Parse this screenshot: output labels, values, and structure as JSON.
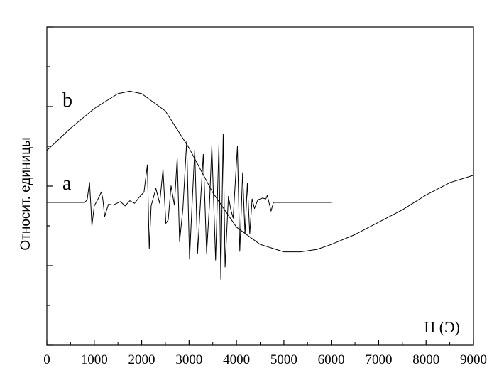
{
  "chart_data": {
    "type": "line",
    "xlabel": "H (Э)",
    "ylabel": "Относит. единицы",
    "xlim": [
      0,
      9000
    ],
    "x_ticks": [
      "0",
      "1000",
      "2000",
      "3000",
      "4000",
      "5000",
      "6000",
      "7000",
      "8000",
      "9000"
    ],
    "y_tick_count": 9,
    "grid": false,
    "series": [
      {
        "name": "a",
        "x": [
          0,
          800,
          850,
          900,
          930,
          950,
          1000,
          1080,
          1150,
          1180,
          1220,
          1300,
          1400,
          1550,
          1650,
          1750,
          1850,
          1950,
          2050,
          2120,
          2160,
          2200,
          2300,
          2380,
          2450,
          2510,
          2560,
          2620,
          2690,
          2750,
          2800,
          2870,
          2950,
          3010,
          3060,
          3120,
          3180,
          3230,
          3300,
          3370,
          3430,
          3480,
          3560,
          3630,
          3670,
          3720,
          3760,
          3830,
          3880,
          3930,
          4020,
          4070,
          4130,
          4180,
          4230,
          4280,
          4330,
          4380,
          4450,
          4550,
          4620,
          4650,
          4700,
          4730,
          4780,
          4850,
          6000
        ],
        "y": [
          0,
          0,
          0.3,
          2.3,
          -0.5,
          -2.7,
          -0.4,
          0.4,
          1.2,
          0.4,
          -1.6,
          -0.2,
          -0.3,
          0.1,
          -0.4,
          0.2,
          -0.1,
          0.6,
          1.2,
          4.3,
          -5.3,
          -0.4,
          1.6,
          -0.1,
          3.8,
          -2.4,
          -2.0,
          1.9,
          -0.3,
          5.1,
          -4.5,
          -0.7,
          7.0,
          -6.5,
          -0.6,
          6.0,
          -5.8,
          -1.0,
          5.5,
          -5.8,
          -0.3,
          6.5,
          -6.6,
          6.6,
          -8.8,
          7.8,
          -7.4,
          0.7,
          -0.8,
          -1.8,
          6.4,
          -5.6,
          3.4,
          -3.6,
          2.2,
          -3.6,
          0.4,
          -0.7,
          0.3,
          0.5,
          0.4,
          0.8,
          -0.3,
          -1.0,
          0.0,
          0,
          0
        ]
      },
      {
        "name": "b",
        "x": [
          0,
          500,
          1000,
          1500,
          1750,
          2000,
          2500,
          3000,
          3500,
          4000,
          4500,
          5000,
          5350,
          5700,
          6000,
          6500,
          7000,
          7500,
          8000,
          8500,
          9000
        ],
        "y": [
          2.1,
          3.0,
          3.8,
          4.4,
          4.5,
          4.4,
          3.7,
          2.2,
          0.4,
          -1.0,
          -1.7,
          -2.0,
          -2.0,
          -1.9,
          -1.7,
          -1.3,
          -0.8,
          -0.3,
          0.3,
          0.8,
          1.1
        ]
      }
    ]
  }
}
